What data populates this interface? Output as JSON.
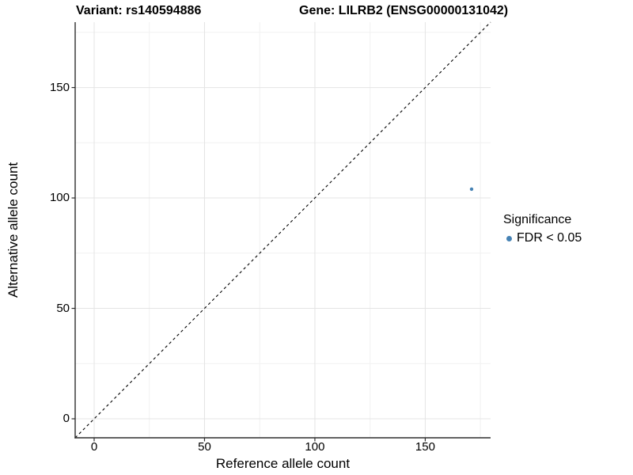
{
  "titles": {
    "variant": "Variant: rs140594886",
    "gene": "Gene: LILRB2 (ENSG00000131042)"
  },
  "chart_data": {
    "type": "scatter",
    "title_left": "Variant: rs140594886",
    "title_right": "Gene: LILRB2 (ENSG00000131042)",
    "xlabel": "Reference allele count",
    "ylabel": "Alternative allele count",
    "xlim": [
      -8.6,
      179.6
    ],
    "ylim": [
      -8.6,
      179.6
    ],
    "x_major_ticks": [
      0,
      50,
      100,
      150
    ],
    "y_major_ticks": [
      0,
      50,
      100,
      150
    ],
    "x_minor_ticks": [
      25,
      75,
      125,
      175
    ],
    "y_minor_ticks": [
      25,
      75,
      125,
      175
    ],
    "grid": true,
    "legend_position": "right",
    "identity_line": {
      "style": "dashed",
      "slope": 1,
      "intercept": 0,
      "color": "#000000"
    },
    "series": [
      {
        "name": "FDR < 0.05",
        "color": "#4682B4",
        "points": [
          {
            "x": 171,
            "y": 104
          }
        ]
      }
    ],
    "legend": {
      "title": "Significance",
      "items": [
        {
          "label": "FDR < 0.05",
          "color": "#4682B4"
        }
      ]
    }
  },
  "colors": {
    "point": "#4682B4",
    "grid_major": "#e4e4e4",
    "grid_minor": "#f1f1f1",
    "axis_line": "#2e2e2e",
    "background": "#ffffff",
    "text": "#000000"
  }
}
